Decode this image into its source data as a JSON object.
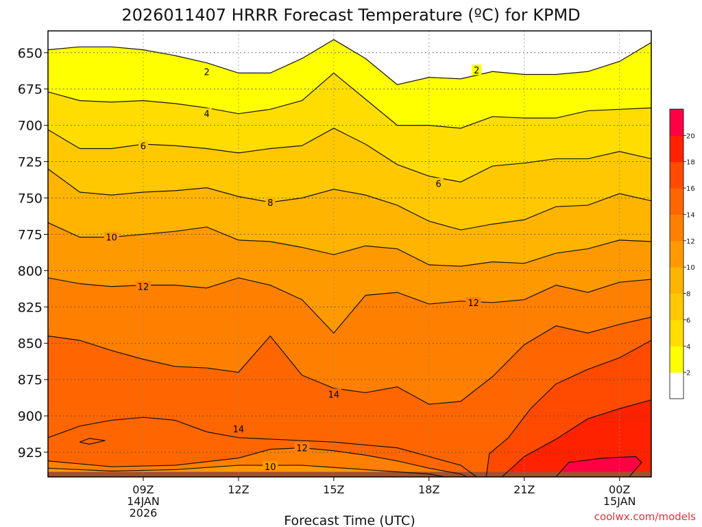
{
  "chart_data": {
    "type": "heatmap",
    "title": "2026011407 HRRR Forecast Temperature (ºC) for KPMD",
    "xlabel": "Forecast Time (UTC)",
    "ylabel": "",
    "credit": "coolwx.com/models",
    "x_unit": "hours after 06Z 14JAN2026",
    "xlim": [
      0,
      19
    ],
    "ylim": [
      635,
      942
    ],
    "y_reversed": true,
    "y_ticks": [
      650,
      675,
      700,
      725,
      750,
      775,
      800,
      825,
      850,
      875,
      900,
      925
    ],
    "x_ticks": [
      {
        "x": 3,
        "lines": [
          "09Z",
          "14JAN",
          "2026"
        ]
      },
      {
        "x": 6,
        "lines": [
          "12Z"
        ]
      },
      {
        "x": 9,
        "lines": [
          "15Z"
        ]
      },
      {
        "x": 12,
        "lines": [
          "18Z"
        ]
      },
      {
        "x": 15,
        "lines": [
          "21Z"
        ]
      },
      {
        "x": 18,
        "lines": [
          "00Z",
          "15JAN"
        ]
      }
    ],
    "x": [
      0,
      1,
      2,
      3,
      4,
      5,
      6,
      7,
      8,
      9,
      10,
      11,
      12,
      13,
      14,
      15,
      16,
      17,
      18,
      19
    ],
    "isotherms": [
      {
        "value": 2,
        "pressure": [
          648,
          646,
          646,
          648,
          652,
          657,
          664,
          664,
          654,
          641,
          654,
          672,
          667,
          668,
          663,
          665,
          665,
          663,
          656,
          643
        ]
      },
      {
        "value": 4,
        "pressure": [
          677,
          683,
          684,
          683,
          685,
          688,
          692,
          689,
          683,
          664,
          682,
          700,
          700,
          702,
          694,
          695,
          695,
          690,
          689,
          688
        ]
      },
      {
        "value": 6,
        "pressure": [
          703,
          716,
          716,
          713,
          714,
          716,
          719,
          716,
          714,
          702,
          713,
          727,
          735,
          739,
          728,
          726,
          723,
          723,
          718,
          723
        ]
      },
      {
        "value": 8,
        "pressure": [
          730,
          746,
          748,
          746,
          745,
          743,
          749,
          753,
          750,
          744,
          748,
          755,
          766,
          772,
          768,
          765,
          756,
          755,
          747,
          752
        ]
      },
      {
        "value": 10,
        "pressure": [
          767,
          777,
          777,
          775,
          773,
          770,
          779,
          780,
          784,
          789,
          783,
          785,
          796,
          797,
          794,
          795,
          788,
          785,
          779,
          780
        ]
      },
      {
        "value": 12,
        "pressure": [
          805,
          809,
          811,
          810,
          810,
          812,
          805,
          810,
          820,
          843,
          817,
          815,
          823,
          821,
          822,
          820,
          810,
          815,
          808,
          806
        ]
      },
      {
        "value": 14,
        "pressure": [
          845,
          848,
          855,
          861,
          866,
          867,
          870,
          845,
          872,
          881,
          884,
          880,
          892,
          890,
          873,
          851,
          838,
          843,
          837,
          832
        ]
      }
    ],
    "isotherm_labels": [
      {
        "value": 2,
        "x": 5,
        "p": 663
      },
      {
        "value": 2,
        "x": 13.5,
        "p": 662
      },
      {
        "value": 4,
        "x": 5,
        "p": 692
      },
      {
        "value": 6,
        "x": 3,
        "p": 714
      },
      {
        "value": 6,
        "x": 12.3,
        "p": 740
      },
      {
        "value": 8,
        "x": 7,
        "p": 753
      },
      {
        "value": 10,
        "x": 2,
        "p": 777
      },
      {
        "value": 12,
        "x": 3,
        "p": 811
      },
      {
        "value": 12,
        "x": 13.4,
        "p": 822
      },
      {
        "value": 14,
        "x": 9,
        "p": 885
      },
      {
        "value": 14,
        "x": 6,
        "p": 909
      },
      {
        "value": 12,
        "x": 8,
        "p": 922
      },
      {
        "value": 10,
        "x": 7,
        "p": 935
      }
    ],
    "colorbar": {
      "levels": [
        0,
        2,
        4,
        6,
        8,
        10,
        12,
        14,
        16,
        18,
        20,
        22
      ],
      "tick_labels": [
        "2",
        "4",
        "6",
        "8",
        "10",
        "12",
        "14",
        "16",
        "18",
        "20"
      ],
      "colors": [
        "#ffffff",
        "#ffff00",
        "#ffdd00",
        "#ffc800",
        "#ffb400",
        "#ff9900",
        "#ff8000",
        "#ff6600",
        "#ff4a00",
        "#ff2200",
        "#ff0044"
      ]
    }
  }
}
